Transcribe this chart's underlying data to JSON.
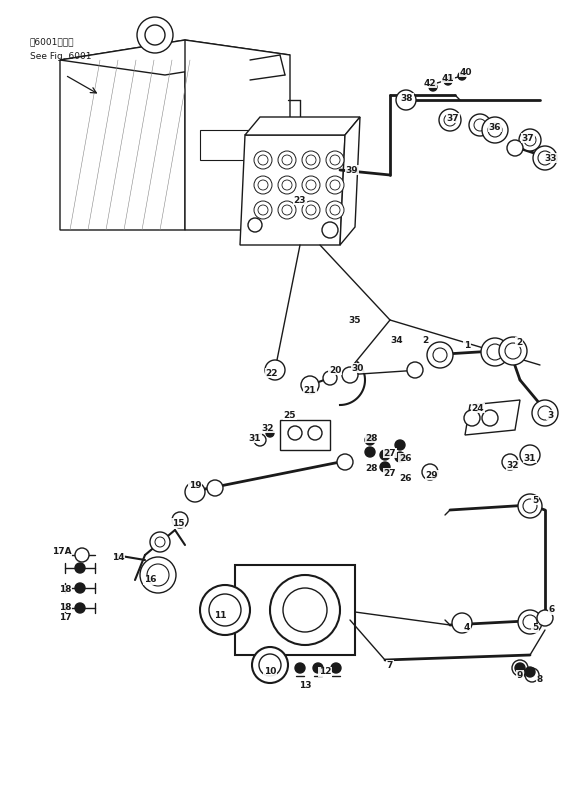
{
  "background_color": "#ffffff",
  "line_color": "#1a1a1a",
  "fig_width": 5.71,
  "fig_height": 8.09,
  "dpi": 100,
  "ref_text_1": "第6001图参用",
  "ref_text_2": "See Fig. 6001"
}
